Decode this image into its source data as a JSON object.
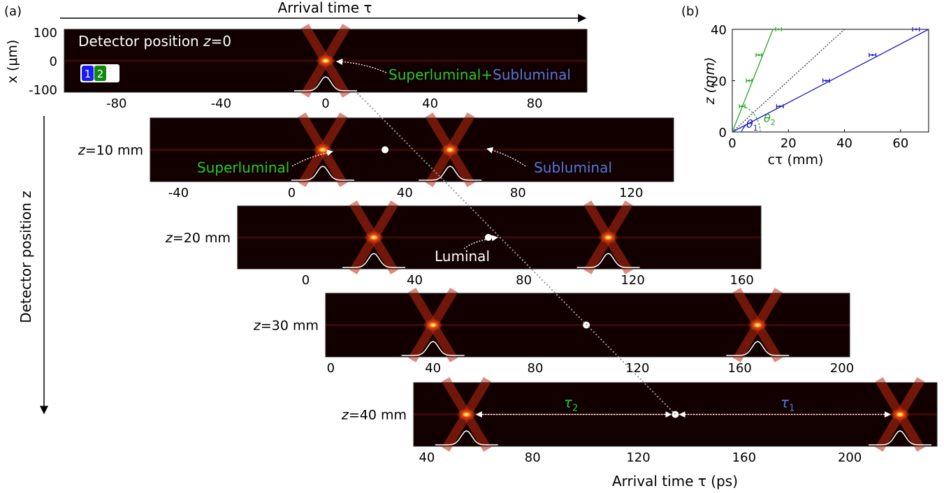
{
  "chart_data": [
    {
      "type": "heatmap",
      "panel_label": "(a)",
      "top_axis_label": "Arrival time τ",
      "side_axis_label": "Detector position z",
      "bottom_axis_label": "Arrival time τ (ps)",
      "y_axis_label": "x (μm)",
      "y_ticks": [
        "100",
        "0",
        "-100"
      ],
      "colors": {
        "superluminal": "#22cc22",
        "subluminal": "#5577dd",
        "luminal": "#ffffff",
        "beam1": "#1a1aff",
        "beam2": "#118811"
      },
      "legend_swatches": [
        "1",
        "2"
      ],
      "tau2_symbol": "τ",
      "tau2_sub": "2",
      "tau1_symbol": "τ",
      "tau1_sub": "1",
      "strips": [
        {
          "label_var": "z",
          "label_rest": "=0",
          "label_prefix": "Detector position ",
          "xlim": [
            -100,
            100
          ],
          "ticks": [
            -80,
            -40,
            0,
            40,
            80
          ],
          "tick_labels": [
            "-80",
            "-40",
            "0",
            "40",
            "80"
          ],
          "spots": [
            0
          ],
          "luminal_marker": null
        },
        {
          "label_var": "z",
          "label_rest": "=10 mm",
          "xlim": [
            -50,
            135
          ],
          "ticks": [
            -40,
            0,
            40,
            80,
            120
          ],
          "tick_labels": [
            "-40",
            "0",
            "40",
            "80",
            "120"
          ],
          "spots": [
            11,
            56
          ],
          "luminal_marker": 33
        },
        {
          "label_var": "z",
          "label_rest": "=20 mm",
          "xlim": [
            -25,
            167
          ],
          "ticks": [
            0,
            40,
            80,
            120,
            160
          ],
          "tick_labels": [
            "0",
            "40",
            "80",
            "120",
            "160"
          ],
          "spots": [
            25,
            111
          ],
          "luminal_marker": 67
        },
        {
          "label_var": "z",
          "label_rest": "=30 mm",
          "xlim": [
            -2,
            203
          ],
          "ticks": [
            0,
            40,
            80,
            120,
            160,
            200
          ],
          "tick_labels": [
            "0",
            "40",
            "80",
            "120",
            "160",
            "200"
          ],
          "spots": [
            40,
            167
          ],
          "luminal_marker": 100
        },
        {
          "label_var": "z",
          "label_rest": "=40 mm",
          "xlim": [
            35,
            233
          ],
          "ticks": [
            40,
            80,
            120,
            160,
            200
          ],
          "tick_labels": [
            "40",
            "80",
            "120",
            "160",
            "200"
          ],
          "spots": [
            55,
            219
          ],
          "luminal_marker": 134
        }
      ],
      "annotations": {
        "superluminal_plus": "Superluminal",
        "plus": "+",
        "subluminal_top": "Subluminal",
        "superluminal": "Superluminal",
        "subluminal": "Subluminal",
        "luminal": "Luminal"
      }
    },
    {
      "type": "scatter",
      "panel_label": "(b)",
      "xlabel": "cτ (mm)",
      "ylabel": "z (mm)",
      "xlim": [
        0,
        70
      ],
      "ylim": [
        0,
        40
      ],
      "xticks": [
        0,
        20,
        40,
        60
      ],
      "yticks": [
        0,
        20,
        40
      ],
      "theta1_label": "θ",
      "theta1_sub": "1",
      "theta2_label": "θ",
      "theta2_sub": "2",
      "series": [
        {
          "color": "#22aa22",
          "points": [
            {
              "x": 3.5,
              "y": 10
            },
            {
              "x": 6,
              "y": 20
            },
            {
              "x": 9.5,
              "y": 30
            },
            {
              "x": 16.5,
              "y": 40
            }
          ],
          "xerr": 1.0,
          "fit": [
            [
              0,
              0
            ],
            [
              14.5,
              40
            ]
          ]
        },
        {
          "color": "#1a1acc",
          "points": [
            {
              "x": 17,
              "y": 10
            },
            {
              "x": 33.5,
              "y": 20
            },
            {
              "x": 50,
              "y": 30
            },
            {
              "x": 65.5,
              "y": 40
            }
          ],
          "xerr": 1.2,
          "fit": [
            [
              0,
              0
            ],
            [
              70,
              40
            ]
          ]
        }
      ],
      "luminal_line": [
        [
          0,
          0
        ],
        [
          40,
          40
        ]
      ]
    }
  ]
}
